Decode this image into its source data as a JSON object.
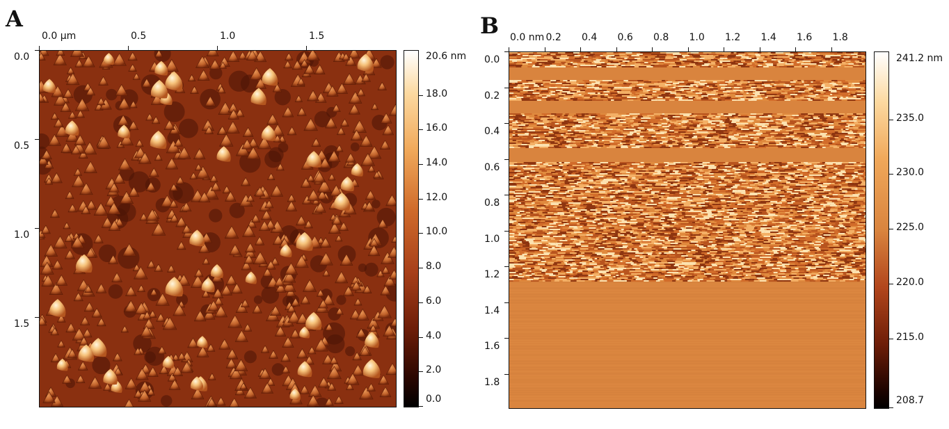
{
  "panelA": {
    "letter": "A",
    "x_ticks": [
      "0.0 µm",
      "0.5",
      "1.0",
      "1.5"
    ],
    "y_ticks": [
      "0.0",
      "0.5",
      "1.0",
      "1.5"
    ],
    "colorbar": {
      "unit_label": "20.6 nm",
      "labels": [
        "18.0",
        "16.0",
        "14.0",
        "12.0",
        "10.0",
        "8.0",
        "6.0",
        "4.0",
        "2.0",
        "0.0"
      ],
      "values": [
        18.0,
        16.0,
        14.0,
        12.0,
        10.0,
        8.0,
        6.0,
        4.0,
        2.0,
        0.0
      ],
      "max": 20.6,
      "min": 0.0
    }
  },
  "panelB": {
    "letter": "B",
    "x_ticks": [
      "0.0 nm",
      "0.2",
      "0.4",
      "0.6",
      "0.8",
      "1.0",
      "1.2",
      "1.4",
      "1.6",
      "1.8"
    ],
    "y_ticks": [
      "0.0",
      "0.2",
      "0.4",
      "0.6",
      "0.8",
      "1.0",
      "1.2",
      "1.4",
      "1.6",
      "1.8"
    ],
    "colorbar": {
      "unit_label": "241.2 nm",
      "labels": [
        "235.0",
        "230.0",
        "225.0",
        "220.0",
        "215.0",
        "208.7"
      ],
      "values": [
        235.0,
        230.0,
        225.0,
        220.0,
        215.0,
        208.7
      ],
      "max": 241.2,
      "min": 208.7
    }
  },
  "colors": {
    "afm_dark": "#1a0500",
    "afm_mid": "#a8471b",
    "afm_light": "#ffffff",
    "flat_orange": "#d9843e"
  }
}
